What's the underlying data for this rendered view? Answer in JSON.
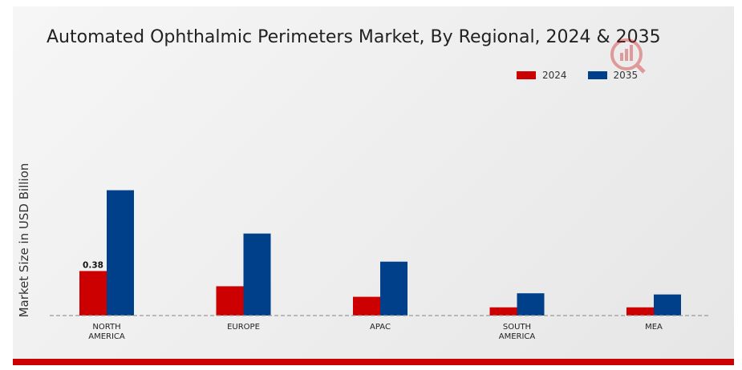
{
  "chart_data": {
    "type": "bar",
    "title": "Automated Ophthalmic Perimeters Market, By Regional, 2024 & 2035",
    "xlabel": "",
    "ylabel": "Market Size in USD Billion",
    "categories": [
      "NORTH AMERICA",
      "EUROPE",
      "APAC",
      "SOUTH AMERICA",
      "MEA"
    ],
    "category_lines": [
      [
        "NORTH",
        "AMERICA"
      ],
      [
        "EUROPE"
      ],
      [
        "APAC"
      ],
      [
        "SOUTH",
        "AMERICA"
      ],
      [
        "MEA"
      ]
    ],
    "series": [
      {
        "name": "2024",
        "color": "#cc0000",
        "values": [
          0.38,
          0.25,
          0.16,
          0.07,
          0.07
        ]
      },
      {
        "name": "2035",
        "color": "#003f8a",
        "values": [
          1.07,
          0.7,
          0.46,
          0.19,
          0.18
        ]
      }
    ],
    "data_labels": [
      {
        "series": 0,
        "index": 0,
        "text": "0.38"
      }
    ],
    "ylim": [
      0,
      1.6
    ],
    "grid": false,
    "legend": "top-right"
  },
  "logo": {
    "name": "watermark-logo-icon",
    "color": "#cc0000"
  }
}
